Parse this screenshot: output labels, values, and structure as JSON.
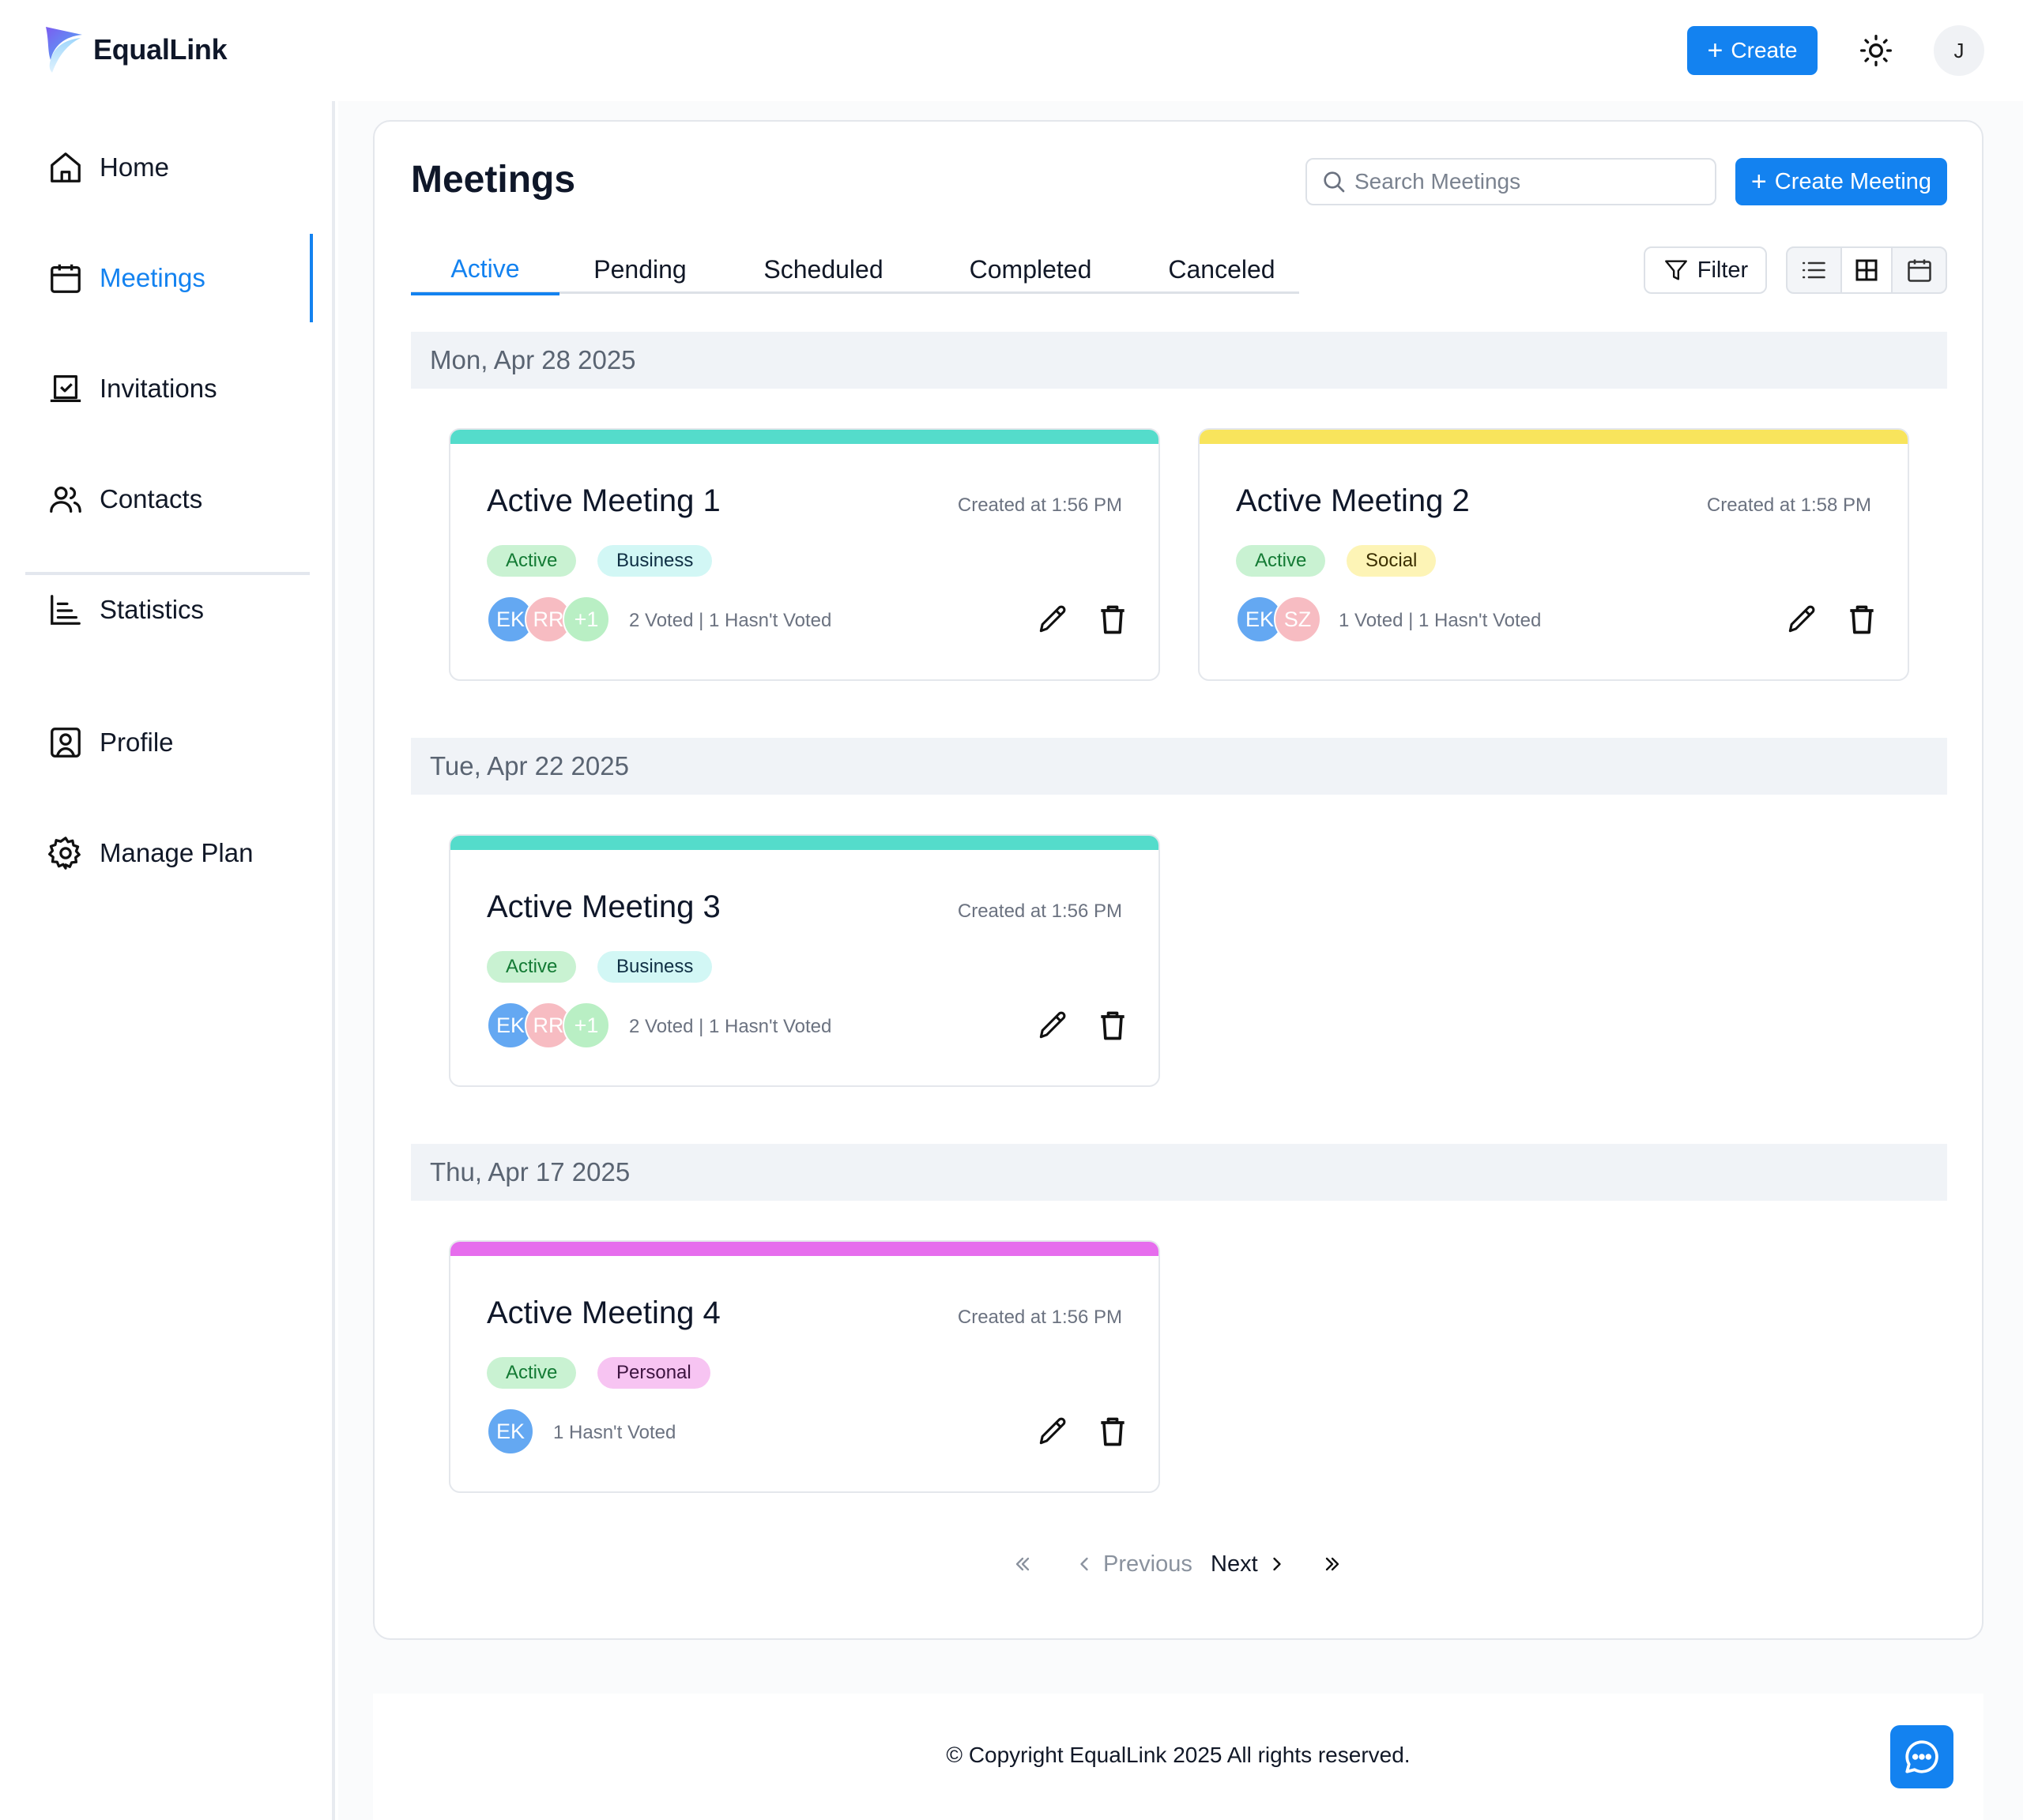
{
  "app": {
    "name": "EqualLink"
  },
  "topbar": {
    "create_label": "Create",
    "user_initial": "J"
  },
  "sidebar": {
    "items": [
      {
        "label": "Home",
        "icon": "home-icon"
      },
      {
        "label": "Meetings",
        "icon": "calendar-icon",
        "active": true
      },
      {
        "label": "Invitations",
        "icon": "invitation-icon"
      },
      {
        "label": "Contacts",
        "icon": "contacts-icon"
      },
      {
        "label": "Statistics",
        "icon": "statistics-icon"
      },
      {
        "label": "Profile",
        "icon": "profile-icon"
      },
      {
        "label": "Manage Plan",
        "icon": "gear-icon"
      }
    ]
  },
  "main": {
    "title": "Meetings",
    "search_placeholder": "Search Meetings",
    "create_meeting_label": "Create Meeting",
    "tabs": [
      "Active",
      "Pending",
      "Scheduled",
      "Completed",
      "Canceled"
    ],
    "active_tab": "Active",
    "filter_label": "Filter",
    "view_modes": [
      "list-view-icon",
      "grid-view-icon",
      "calendar-view-icon"
    ],
    "selected_view": "grid-view-icon",
    "groups": [
      {
        "date": "Mon, Apr 28 2025",
        "meetings": [
          {
            "title": "Active Meeting 1",
            "created": "Created at 1:56 PM",
            "status": "Active",
            "category": "Business",
            "accent": "#54dccb",
            "avatars": [
              "EK",
              "RR",
              "+1"
            ],
            "votes": "2 Voted | 1 Hasn't Voted"
          },
          {
            "title": "Active Meeting 2",
            "created": "Created at 1:58 PM",
            "status": "Active",
            "category": "Social",
            "accent": "#f8e45c",
            "avatars": [
              "EK",
              "SZ"
            ],
            "votes": "1 Voted | 1 Hasn't Voted"
          }
        ]
      },
      {
        "date": "Tue, Apr 22 2025",
        "meetings": [
          {
            "title": "Active Meeting 3",
            "created": "Created at 1:56 PM",
            "status": "Active",
            "category": "Business",
            "accent": "#54dccb",
            "avatars": [
              "EK",
              "RR",
              "+1"
            ],
            "votes": "2 Voted | 1 Hasn't Voted"
          }
        ]
      },
      {
        "date": "Thu, Apr 17 2025",
        "meetings": [
          {
            "title": "Active Meeting 4",
            "created": "Created at 1:56 PM",
            "status": "Active",
            "category": "Personal",
            "accent": "#e66ded",
            "avatars": [
              "EK"
            ],
            "votes": "1 Hasn't Voted"
          }
        ]
      }
    ],
    "pagination": {
      "previous_label": "Previous",
      "next_label": "Next"
    }
  },
  "footer": {
    "copyright": "© Copyright EqualLink 2025 All rights reserved."
  }
}
